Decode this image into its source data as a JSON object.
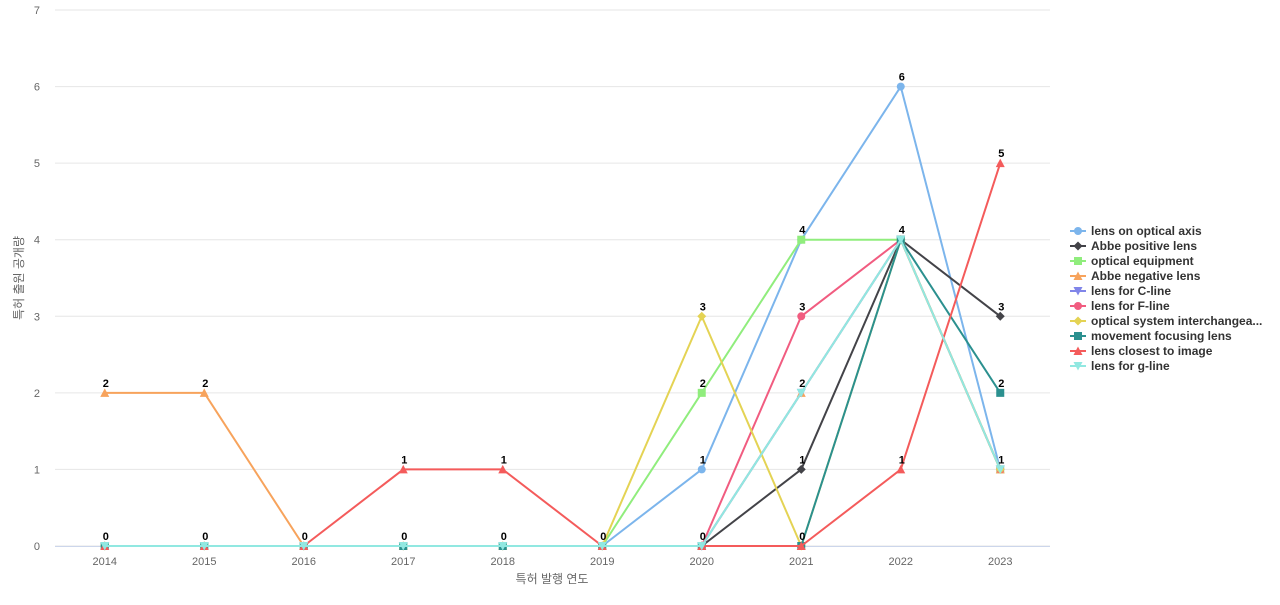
{
  "chart_data": {
    "type": "line",
    "xlabel": "특허 발행 연도",
    "ylabel": "특허 출원 공개량",
    "ylim": [
      0,
      7
    ],
    "y_ticks": [
      0,
      1,
      2,
      3,
      4,
      5,
      6,
      7
    ],
    "categories": [
      "2014",
      "2015",
      "2016",
      "2017",
      "2018",
      "2019",
      "2020",
      "2021",
      "2022",
      "2023"
    ],
    "grid": true,
    "legend_position": "right",
    "series": [
      {
        "name": "lens on optical axis",
        "color": "#7cb5ec",
        "marker": "circle",
        "values": [
          0,
          0,
          0,
          0,
          0,
          0,
          1,
          4,
          6,
          1
        ]
      },
      {
        "name": "Abbe positive lens",
        "color": "#434348",
        "marker": "diamond",
        "values": [
          0,
          0,
          0,
          0,
          0,
          0,
          0,
          1,
          4,
          3
        ]
      },
      {
        "name": "optical equipment",
        "color": "#90ed7d",
        "marker": "square",
        "values": [
          0,
          0,
          0,
          0,
          0,
          0,
          2,
          4,
          4,
          1
        ]
      },
      {
        "name": "Abbe negative lens",
        "color": "#f7a35c",
        "marker": "triangle",
        "values": [
          2,
          2,
          0,
          0,
          0,
          0,
          0,
          2,
          4,
          1
        ]
      },
      {
        "name": "lens for C-line",
        "color": "#8085e9",
        "marker": "triangle-down",
        "values": [
          0,
          0,
          0,
          0,
          0,
          0,
          0,
          2,
          4,
          1
        ]
      },
      {
        "name": "lens for F-line",
        "color": "#f15c80",
        "marker": "circle",
        "values": [
          0,
          0,
          0,
          0,
          0,
          0,
          0,
          3,
          4,
          1
        ]
      },
      {
        "name": "optical system interchangea...",
        "color": "#e4d354",
        "marker": "diamond",
        "values": [
          0,
          0,
          0,
          0,
          0,
          0,
          3,
          0,
          4,
          1
        ]
      },
      {
        "name": "movement focusing lens",
        "color": "#2b908f",
        "marker": "square",
        "values": [
          0,
          0,
          0,
          0,
          0,
          0,
          0,
          0,
          4,
          2
        ]
      },
      {
        "name": "lens closest to image",
        "color": "#f45b5b",
        "marker": "triangle",
        "values": [
          0,
          0,
          0,
          1,
          1,
          0,
          0,
          0,
          1,
          5
        ]
      },
      {
        "name": "lens for g-line",
        "color": "#91e8e1",
        "marker": "triangle-down",
        "values": [
          0,
          0,
          0,
          0,
          0,
          0,
          0,
          2,
          4,
          1
        ]
      }
    ],
    "data_labels": [
      {
        "text": "2",
        "cat": 0,
        "value": 2
      },
      {
        "text": "0",
        "cat": 0,
        "value": 0
      },
      {
        "text": "2",
        "cat": 1,
        "value": 2
      },
      {
        "text": "0",
        "cat": 1,
        "value": 0
      },
      {
        "text": "0",
        "cat": 2,
        "value": 0
      },
      {
        "text": "1",
        "cat": 3,
        "value": 1
      },
      {
        "text": "0",
        "cat": 3,
        "value": 0
      },
      {
        "text": "1",
        "cat": 4,
        "value": 1
      },
      {
        "text": "0",
        "cat": 4,
        "value": 0
      },
      {
        "text": "0",
        "cat": 5,
        "value": 0
      },
      {
        "text": "3",
        "cat": 6,
        "value": 3
      },
      {
        "text": "2",
        "cat": 6,
        "value": 2
      },
      {
        "text": "1",
        "cat": 6,
        "value": 1
      },
      {
        "text": "0",
        "cat": 6,
        "value": 0
      },
      {
        "text": "4",
        "cat": 7,
        "value": 4
      },
      {
        "text": "3",
        "cat": 7,
        "value": 3
      },
      {
        "text": "2",
        "cat": 7,
        "value": 2
      },
      {
        "text": "1",
        "cat": 7,
        "value": 1
      },
      {
        "text": "0",
        "cat": 7,
        "value": 0
      },
      {
        "text": "6",
        "cat": 8,
        "value": 6
      },
      {
        "text": "4",
        "cat": 8,
        "value": 4
      },
      {
        "text": "1",
        "cat": 8,
        "value": 1
      },
      {
        "text": "5",
        "cat": 9,
        "value": 5
      },
      {
        "text": "3",
        "cat": 9,
        "value": 3
      },
      {
        "text": "2",
        "cat": 9,
        "value": 2
      },
      {
        "text": "1",
        "cat": 9,
        "value": 1
      }
    ]
  }
}
